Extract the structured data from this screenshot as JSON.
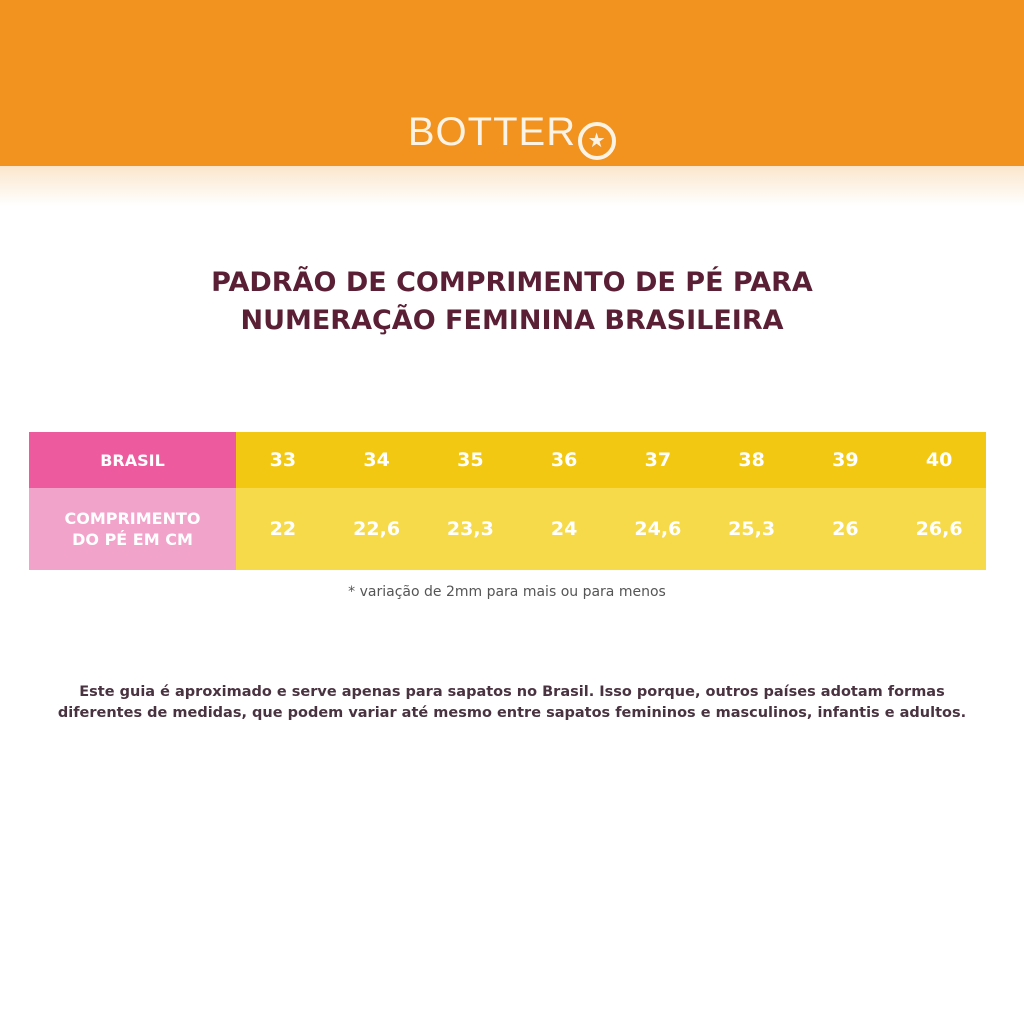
{
  "brand": {
    "logo_text": "BOTTERO",
    "colors": {
      "banner": "#F2921F",
      "title": "#5a1f35",
      "header_pink": "#EE5A9E",
      "label_pink": "#F1A3CA",
      "size_yellow": "#F2C812",
      "length_yellow": "#F6DA4A"
    }
  },
  "title": {
    "line1": "PADRÃO DE COMPRIMENTO DE PÉ PARA",
    "line2": "NUMERAÇÃO FEMININA BRASILEIRA"
  },
  "table": {
    "row1_label": "BRASIL",
    "row2_label_line1": "COMPRIMENTO",
    "row2_label_line2": "DO PÉ EM CM",
    "sizes": [
      "33",
      "34",
      "35",
      "36",
      "37",
      "38",
      "39",
      "40"
    ],
    "lengths_cm": [
      "22",
      "22,6",
      "23,3",
      "24",
      "24,6",
      "25,3",
      "26",
      "26,6"
    ]
  },
  "note": "* variação de 2mm para mais ou para menos",
  "paragraph": {
    "line1": "Este guia é aproximado e serve apenas para sapatos no Brasil. Isso porque, outros países adotam formas",
    "line2": "diferentes de medidas, que podem variar até mesmo entre sapatos femininos e masculinos, infantis e adultos."
  }
}
